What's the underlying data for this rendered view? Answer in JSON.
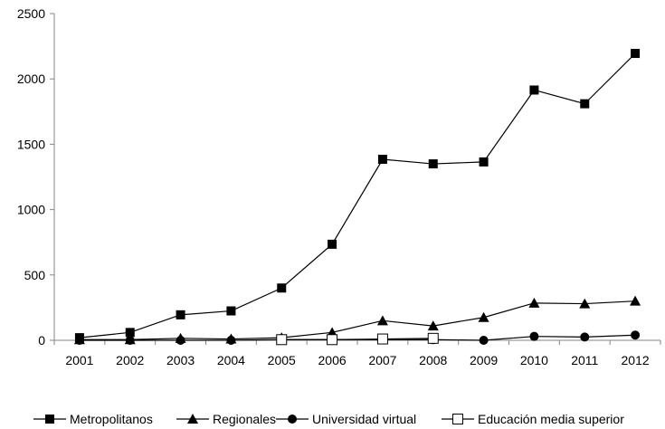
{
  "chart_data": {
    "type": "line",
    "title": "",
    "xlabel": "",
    "ylabel": "",
    "categories": [
      "2001",
      "2002",
      "2003",
      "2004",
      "2005",
      "2006",
      "2007",
      "2008",
      "2009",
      "2010",
      "2011",
      "2012"
    ],
    "ylim": [
      0,
      2500
    ],
    "yticks": [
      "0",
      "500",
      "1000",
      "1500",
      "2000",
      "2500"
    ],
    "grid": false,
    "legend_position": "bottom",
    "series": [
      {
        "name": "Metropolitanos",
        "marker": "filled-square",
        "values": [
          20,
          60,
          195,
          225,
          400,
          735,
          1385,
          1350,
          1365,
          1915,
          1810,
          2195
        ]
      },
      {
        "name": "Regionales",
        "marker": "filled-triangle",
        "values": [
          5,
          5,
          15,
          10,
          20,
          60,
          150,
          110,
          175,
          285,
          280,
          300
        ]
      },
      {
        "name": "Universidad virtual",
        "marker": "filled-circle",
        "values": [
          0,
          0,
          0,
          0,
          5,
          5,
          5,
          5,
          0,
          30,
          25,
          40
        ]
      },
      {
        "name": "Educación media superior",
        "marker": "open-square",
        "values": [
          null,
          null,
          null,
          null,
          5,
          5,
          10,
          15,
          null,
          null,
          null,
          null
        ]
      }
    ]
  }
}
